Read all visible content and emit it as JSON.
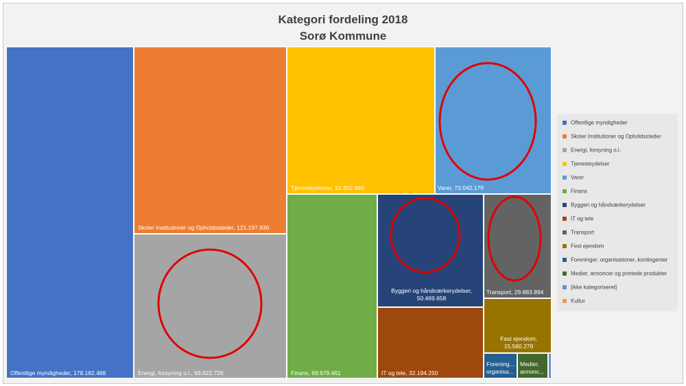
{
  "chart_data": {
    "type": "treemap",
    "title": "Kategori fordeling 2018",
    "subtitle": "Sorø Kommune",
    "legend_position": "right",
    "categories": [
      {
        "name": "Offentlige myndigheder",
        "label": "Offentlige myndigheder, 178.182.488",
        "value": 178182488,
        "color": "#4472C4"
      },
      {
        "name": "Skoler Institutioner og Opholdssteder",
        "label": "Skoler Institutioner og Opholdssteder, 121.197.936",
        "value": 121197936,
        "color": "#ED7D31"
      },
      {
        "name": "Energi, forsyning o.l.",
        "label": "Energi, forsyning o.l., 93.622.726",
        "value": 93622726,
        "color": "#A5A5A5"
      },
      {
        "name": "Tjenesteydelser",
        "label": "Tjenesteydelser, 91.852.883",
        "value": 91852883,
        "color": "#FFC000"
      },
      {
        "name": "Varer",
        "label": "Varer, 73.042.179",
        "value": 73042179,
        "color": "#5B9BD5"
      },
      {
        "name": "Finans",
        "label": "Finans, 69.979.461",
        "value": 69979461,
        "color": "#70AD47"
      },
      {
        "name": "Byggeri og håndværkerydelser",
        "label": "Byggeri og håndværkerydelser, 50.469.658",
        "value": 50469658,
        "color": "#264478"
      },
      {
        "name": "IT og tele",
        "label": "IT og tele, 32.194.250",
        "value": 32194250,
        "color": "#9E480E"
      },
      {
        "name": "Transport",
        "label": "Transport, 29.883.894",
        "value": 29883894,
        "color": "#636363"
      },
      {
        "name": "Fest ejendom",
        "label": "Fast ejendom, 15.580.279",
        "value": 15580279,
        "color": "#997300"
      },
      {
        "name": "Foreninger, organisationer, kontingenter",
        "label": "Forening... organisa...",
        "value": null,
        "color": "#255E91"
      },
      {
        "name": "Medier, annoncer og printede produkter",
        "label": "Medier, annonc...",
        "value": null,
        "color": "#43682B"
      },
      {
        "name": "[ikke kategoriseret]",
        "label": "",
        "value": null,
        "color": "#698ED0"
      },
      {
        "name": "Kultur",
        "label": "",
        "value": null,
        "color": "#F1975A"
      }
    ]
  }
}
